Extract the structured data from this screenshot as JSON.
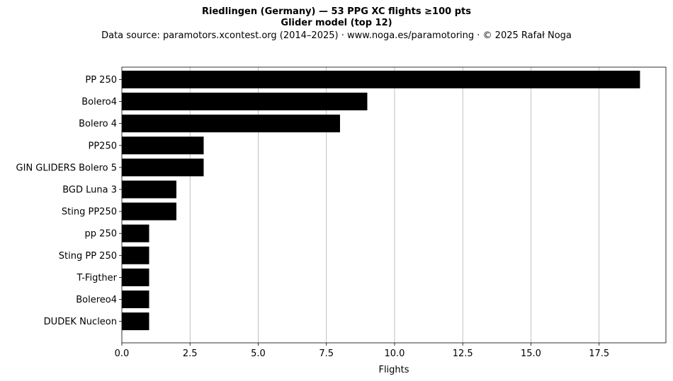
{
  "title_line1": "Riedlingen (Germany)  —  53 PPG XC flights ≥100 pts",
  "title_line2": "Glider model (top 12)",
  "subtitle": "Data source: paramotors.xcontest.org (2014–2025)  ·  www.noga.es/paramotoring  ·  © 2025 Rafał Noga",
  "chart_data": {
    "type": "bar",
    "orientation": "horizontal",
    "categories": [
      "PP 250",
      "Bolero4",
      "Bolero 4",
      "PP250",
      "GIN GLIDERS Bolero 5",
      "BGD Luna 3",
      "Sting PP250",
      "pp 250",
      "Sting PP 250",
      "T-Figther",
      "Bolereo4",
      "DUDEK Nucleon"
    ],
    "values": [
      19,
      9,
      8,
      3,
      3,
      2,
      2,
      1,
      1,
      1,
      1,
      1
    ],
    "xlabel": "Flights",
    "ylabel": "",
    "xlim": [
      0,
      19.95
    ],
    "xticks": [
      0.0,
      2.5,
      5.0,
      7.5,
      10.0,
      12.5,
      15.0,
      17.5
    ],
    "xtick_labels": [
      "0.0",
      "2.5",
      "5.0",
      "7.5",
      "10.0",
      "12.5",
      "15.0",
      "17.5"
    ],
    "grid": "vertical",
    "bar_color": "#000000",
    "grid_color": "#b0b0b0"
  }
}
